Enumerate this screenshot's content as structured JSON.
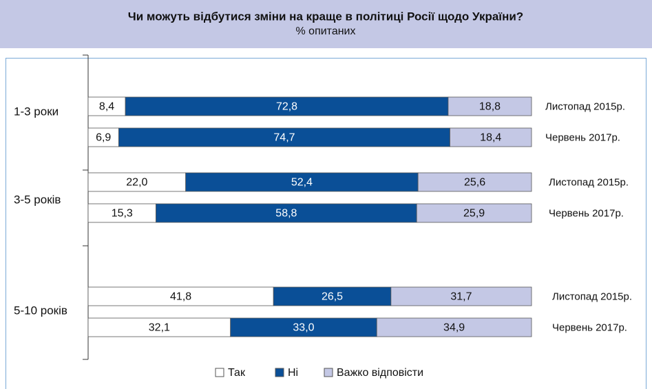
{
  "chart_data": {
    "type": "stacked-bar",
    "title": "Чи можуть відбутися зміни на краще в політиці Росії щодо України?",
    "subtitle": "% опитаних",
    "groups": [
      "1-3 роки",
      "3-5 років",
      "5-10 років"
    ],
    "categories": [
      "Листопад 2015р.",
      "Червень 2017р.",
      "Листопад 2015р.",
      "Червень 2017р.",
      "Листопад 2015р.",
      "Червень 2017р."
    ],
    "series": [
      {
        "name": "Так",
        "color": "#ffffff",
        "values": [
          8.4,
          6.9,
          22.0,
          15.3,
          41.8,
          32.1
        ],
        "value_labels": [
          "8,4",
          "6,9",
          "22,0",
          "15,3",
          "41,8",
          "32,1"
        ]
      },
      {
        "name": "Ні",
        "color": "#0a4f97",
        "values": [
          72.8,
          74.7,
          52.4,
          58.8,
          26.5,
          33.0
        ],
        "value_labels": [
          "72,8",
          "74,7",
          "52,4",
          "58,8",
          "26,5",
          "33,0"
        ]
      },
      {
        "name": "Важко відповісти",
        "color": "#c4c8e5",
        "values": [
          18.8,
          18.4,
          25.6,
          25.9,
          31.7,
          34.9
        ],
        "value_labels": [
          "18,8",
          "18,4",
          "25,6",
          "25,9",
          "31,7",
          "34,9"
        ]
      }
    ]
  }
}
